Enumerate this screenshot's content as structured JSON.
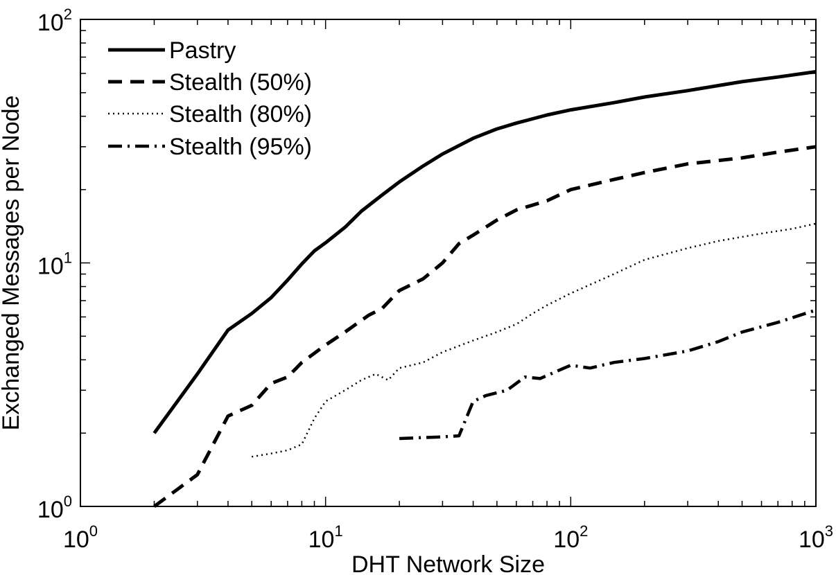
{
  "chart_data": {
    "type": "line",
    "xlabel": "DHT Network Size",
    "ylabel": "Exchanged Messages per Node",
    "x_scale": "log",
    "y_scale": "log",
    "xlim": [
      1,
      1000
    ],
    "ylim": [
      1,
      100
    ],
    "grid": false,
    "legend_position": "top-left",
    "x_ticks": [
      {
        "value": 1,
        "base": "10",
        "exp": "0"
      },
      {
        "value": 10,
        "base": "10",
        "exp": "1"
      },
      {
        "value": 100,
        "base": "10",
        "exp": "2"
      },
      {
        "value": 1000,
        "base": "10",
        "exp": "3"
      }
    ],
    "y_ticks": [
      {
        "value": 1,
        "base": "10",
        "exp": "0"
      },
      {
        "value": 10,
        "base": "10",
        "exp": "1"
      },
      {
        "value": 100,
        "base": "10",
        "exp": "2"
      }
    ],
    "series": [
      {
        "name": "Pastry",
        "style": "solid",
        "color": "#000000",
        "points": [
          [
            2,
            2.0
          ],
          [
            3,
            3.5
          ],
          [
            4,
            5.3
          ],
          [
            5,
            6.2
          ],
          [
            6,
            7.2
          ],
          [
            7,
            8.5
          ],
          [
            8,
            9.9
          ],
          [
            9,
            11.2
          ],
          [
            10,
            12.1
          ],
          [
            12,
            14.0
          ],
          [
            14,
            16.3
          ],
          [
            17,
            19.0
          ],
          [
            20,
            21.5
          ],
          [
            25,
            25.0
          ],
          [
            30,
            28.0
          ],
          [
            40,
            32.5
          ],
          [
            50,
            35.5
          ],
          [
            60,
            37.5
          ],
          [
            80,
            40.5
          ],
          [
            100,
            42.5
          ],
          [
            150,
            45.5
          ],
          [
            200,
            48.0
          ],
          [
            300,
            51.0
          ],
          [
            400,
            53.5
          ],
          [
            500,
            55.5
          ],
          [
            700,
            58.0
          ],
          [
            1000,
            61.0
          ]
        ]
      },
      {
        "name": "Stealth (50%)",
        "style": "dashed",
        "color": "#000000",
        "points": [
          [
            2,
            1.0
          ],
          [
            3,
            1.35
          ],
          [
            4,
            2.35
          ],
          [
            5,
            2.6
          ],
          [
            6,
            3.2
          ],
          [
            7,
            3.4
          ],
          [
            8,
            3.9
          ],
          [
            10,
            4.6
          ],
          [
            12,
            5.2
          ],
          [
            15,
            6.1
          ],
          [
            17,
            6.5
          ],
          [
            20,
            7.7
          ],
          [
            25,
            8.6
          ],
          [
            30,
            10.0
          ],
          [
            35,
            12.0
          ],
          [
            40,
            13.0
          ],
          [
            50,
            15.0
          ],
          [
            60,
            16.5
          ],
          [
            80,
            18.0
          ],
          [
            100,
            20.0
          ],
          [
            150,
            22.0
          ],
          [
            200,
            23.5
          ],
          [
            300,
            25.5
          ],
          [
            500,
            27.0
          ],
          [
            700,
            28.5
          ],
          [
            1000,
            30.0
          ]
        ]
      },
      {
        "name": "Stealth (80%)",
        "style": "dotted",
        "color": "#000000",
        "points": [
          [
            5,
            1.6
          ],
          [
            6,
            1.65
          ],
          [
            7,
            1.7
          ],
          [
            8,
            1.8
          ],
          [
            9,
            2.3
          ],
          [
            10,
            2.7
          ],
          [
            12,
            3.0
          ],
          [
            14,
            3.3
          ],
          [
            16,
            3.5
          ],
          [
            18,
            3.3
          ],
          [
            20,
            3.7
          ],
          [
            25,
            3.9
          ],
          [
            30,
            4.3
          ],
          [
            40,
            4.8
          ],
          [
            50,
            5.2
          ],
          [
            60,
            5.6
          ],
          [
            70,
            6.2
          ],
          [
            80,
            6.7
          ],
          [
            100,
            7.5
          ],
          [
            150,
            9.0
          ],
          [
            200,
            10.3
          ],
          [
            300,
            11.5
          ],
          [
            400,
            12.3
          ],
          [
            600,
            13.2
          ],
          [
            800,
            13.8
          ],
          [
            1000,
            14.5
          ]
        ]
      },
      {
        "name": "Stealth (95%)",
        "style": "dashdot",
        "color": "#000000",
        "points": [
          [
            20,
            1.9
          ],
          [
            30,
            1.93
          ],
          [
            35,
            1.95
          ],
          [
            40,
            2.7
          ],
          [
            45,
            2.85
          ],
          [
            55,
            3.0
          ],
          [
            65,
            3.4
          ],
          [
            75,
            3.35
          ],
          [
            100,
            3.8
          ],
          [
            120,
            3.7
          ],
          [
            150,
            3.9
          ],
          [
            200,
            4.05
          ],
          [
            300,
            4.35
          ],
          [
            400,
            4.75
          ],
          [
            500,
            5.2
          ],
          [
            700,
            5.7
          ],
          [
            1000,
            6.4
          ]
        ]
      }
    ]
  }
}
